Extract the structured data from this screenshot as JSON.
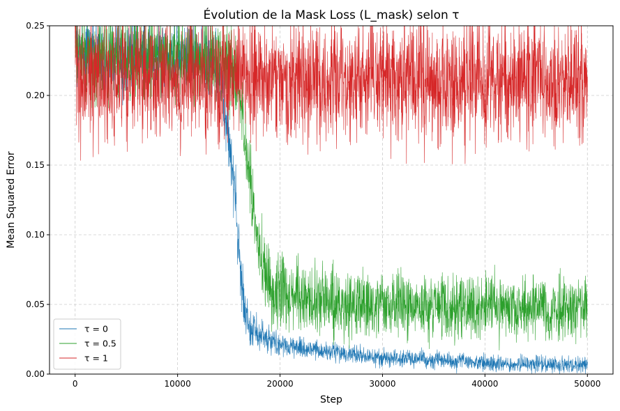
{
  "chart_data": {
    "type": "line",
    "title": "Évolution de la Mask Loss (L_mask) selon τ",
    "xlabel": "Step",
    "ylabel": "Mean Squared Error",
    "xlim": [
      -2500,
      52500
    ],
    "ylim": [
      0,
      0.25
    ],
    "xticks": [
      0,
      10000,
      20000,
      30000,
      40000,
      50000
    ],
    "xtick_labels": [
      "0",
      "10000",
      "20000",
      "30000",
      "40000",
      "50000"
    ],
    "yticks": [
      0.0,
      0.05,
      0.1,
      0.15,
      0.2,
      0.25
    ],
    "ytick_labels": [
      "0.00",
      "0.05",
      "0.10",
      "0.15",
      "0.20",
      "0.25"
    ],
    "grid": true,
    "grid_style": "dashed",
    "legend_position": "lower-left",
    "series": [
      {
        "name": "τ = 0",
        "color": "#1f77b4",
        "noise": 0.012,
        "points": [
          [
            0,
            0.25
          ],
          [
            200,
            0.23
          ],
          [
            13500,
            0.225
          ],
          [
            14500,
            0.195
          ],
          [
            15300,
            0.15
          ],
          [
            15700,
            0.12
          ],
          [
            16100,
            0.075
          ],
          [
            16500,
            0.045
          ],
          [
            17200,
            0.032
          ],
          [
            18000,
            0.027
          ],
          [
            20000,
            0.021
          ],
          [
            25000,
            0.016
          ],
          [
            30000,
            0.012
          ],
          [
            35000,
            0.01
          ],
          [
            40000,
            0.008
          ],
          [
            45000,
            0.007
          ],
          [
            50000,
            0.0065
          ]
        ]
      },
      {
        "name": "τ = 0.5",
        "color": "#2ca02c",
        "noise": 0.014,
        "points": [
          [
            0,
            0.25
          ],
          [
            200,
            0.228
          ],
          [
            15000,
            0.225
          ],
          [
            16000,
            0.205
          ],
          [
            16600,
            0.17
          ],
          [
            17200,
            0.13
          ],
          [
            17800,
            0.095
          ],
          [
            18500,
            0.072
          ],
          [
            19500,
            0.062
          ],
          [
            21000,
            0.056
          ],
          [
            25000,
            0.052
          ],
          [
            30000,
            0.05
          ],
          [
            40000,
            0.048
          ],
          [
            50000,
            0.047
          ]
        ]
      },
      {
        "name": "τ = 1",
        "color": "#d62728",
        "noise": 0.022,
        "points": [
          [
            0,
            0.25
          ],
          [
            200,
            0.21
          ],
          [
            50000,
            0.21
          ]
        ]
      }
    ]
  }
}
